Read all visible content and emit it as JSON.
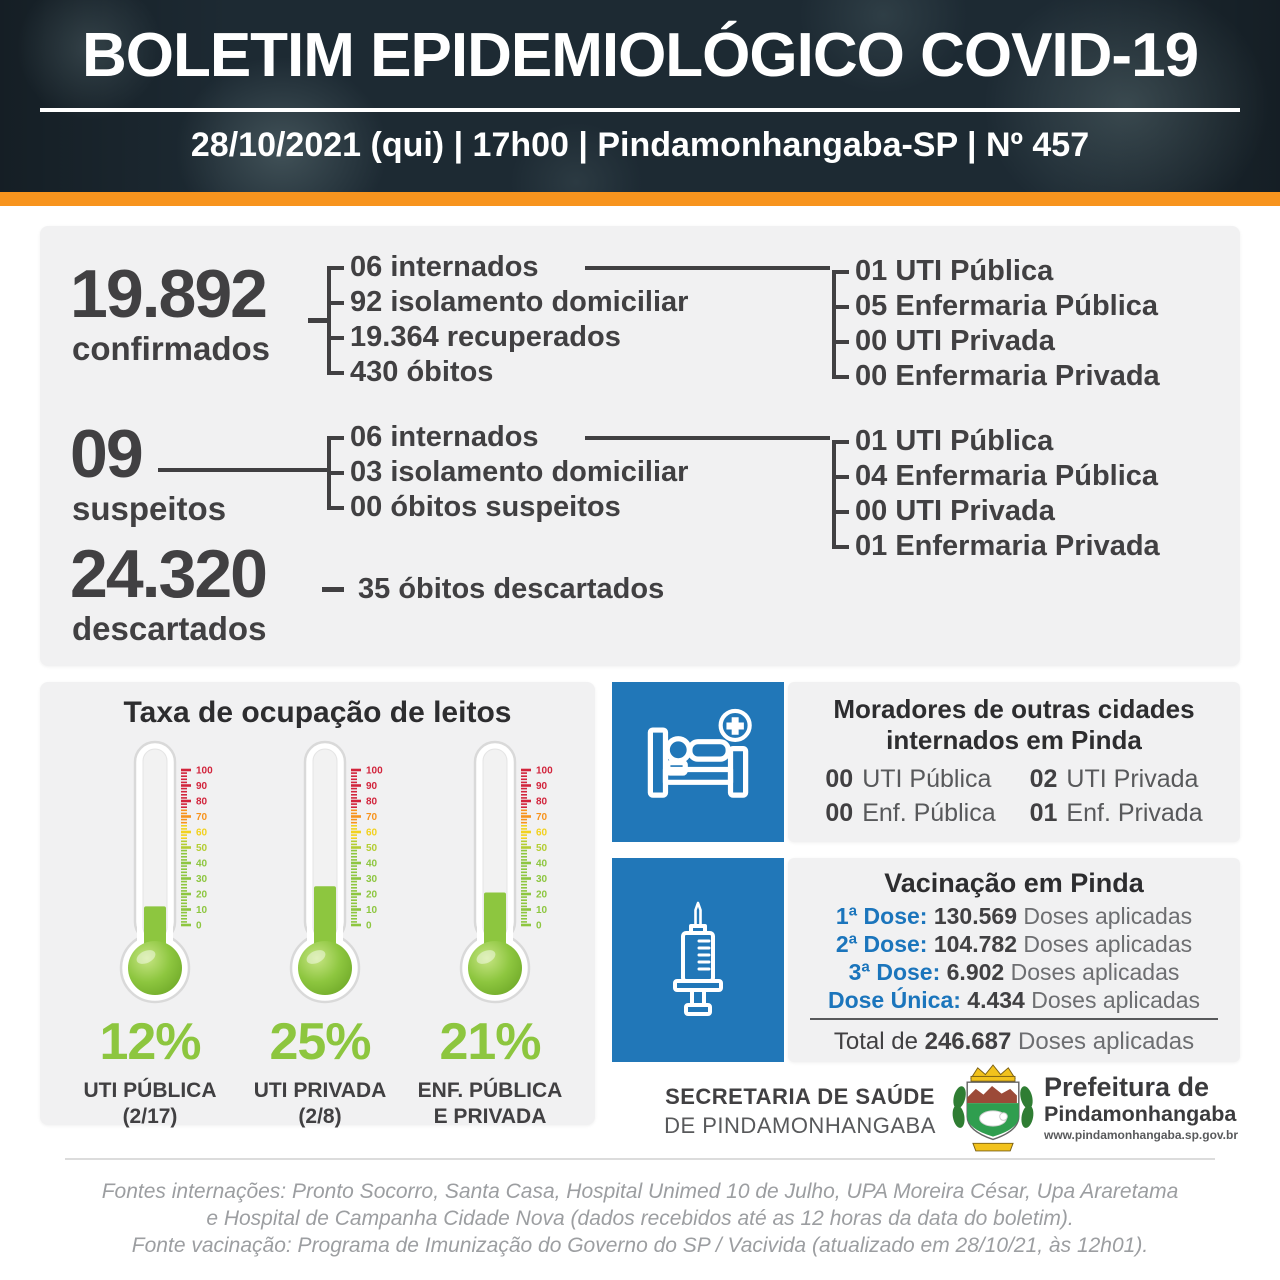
{
  "header": {
    "title": "BOLETIM EPIDEMIOLÓGICO COVID-19",
    "subtitle": "28/10/2021 (qui) | 17h00 | Pindamonhangaba-SP | Nº 457"
  },
  "cases": {
    "confirmed": {
      "value": "19.892",
      "label": "confirmados",
      "breakdown": [
        "06 internados",
        "92 isolamento domiciliar",
        "19.364 recuperados",
        "430 óbitos"
      ],
      "hospitalization": [
        "01 UTI Pública",
        "05 Enfermaria Pública",
        "00 UTI Privada",
        "00 Enfermaria Privada"
      ]
    },
    "suspected": {
      "value": "09",
      "label": "suspeitos",
      "breakdown": [
        "06 internados",
        "03 isolamento domiciliar",
        "00 óbitos suspeitos"
      ],
      "hospitalization": [
        "01 UTI Pública",
        "04 Enfermaria Pública",
        "00 UTI Privada",
        "01 Enfermaria Privada"
      ]
    },
    "discarded": {
      "value": "24.320",
      "label": "descartados",
      "note": "35 óbitos descartados"
    }
  },
  "occupancy": {
    "title": "Taxa de ocupação de leitos",
    "scale": {
      "min": 0,
      "max": 100,
      "step": 10
    },
    "gauges": [
      {
        "percent": 12,
        "percent_label": "12%",
        "label_line1": "UTI PÚBLICA",
        "label_line2": "(2/17)"
      },
      {
        "percent": 25,
        "percent_label": "25%",
        "label_line1": "UTI PRIVADA",
        "label_line2": "(2/8)"
      },
      {
        "percent": 21,
        "percent_label": "21%",
        "label_line1": "ENF. PÚBLICA",
        "label_line2": "E PRIVADA"
      }
    ]
  },
  "out_of_town": {
    "title_line1": "Moradores de outras cidades",
    "title_line2": "internados em Pinda",
    "items": [
      {
        "value": "00",
        "label": "UTI Pública"
      },
      {
        "value": "02",
        "label": "UTI Privada"
      },
      {
        "value": "00",
        "label": "Enf. Pública"
      },
      {
        "value": "01",
        "label": "Enf. Privada"
      }
    ]
  },
  "vaccination": {
    "title": "Vacinação em Pinda",
    "doses": [
      {
        "label": "1ª Dose:",
        "value": "130.569",
        "suffix": "Doses aplicadas"
      },
      {
        "label": "2ª Dose:",
        "value": "104.782",
        "suffix": "Doses aplicadas"
      },
      {
        "label": "3ª Dose:",
        "value": "6.902",
        "suffix": "Doses aplicadas"
      },
      {
        "label": "Dose Única:",
        "value": "4.434",
        "suffix": "Doses aplicadas"
      }
    ],
    "total": {
      "prefix": "Total de",
      "value": "246.687",
      "suffix": "Doses aplicadas"
    }
  },
  "footer": {
    "secretary_line1": "SECRETARIA DE SAÚDE",
    "secretary_line2": "DE PINDAMONHANGABA",
    "brand": {
      "line1": "Prefeitura de",
      "line2": "Pindamonhangaba",
      "url": "www.pindamonhangaba.sp.gov.br"
    },
    "sources": [
      "Fontes internações: Pronto Socorro, Santa Casa, Hospital Unimed 10 de Julho, UPA Moreira César, Upa Araretama",
      "e Hospital de Campanha Cidade Nova (dados recebidos até as 12 horas da data do boletim).",
      "Fonte vacinação: Programa de Imunização do Governo do SP / Vacivida (atualizado em 28/10/21, às 12h01)."
    ]
  },
  "colors": {
    "header_bg": "#1d2a33",
    "accent_orange": "#f7941e",
    "panel_gray": "#f1f1f2",
    "text_dark": "#414042",
    "text_gray": "#58595b",
    "green": "#8dc63f",
    "blue_panel": "#2177b8",
    "blue_text": "#1b75bc",
    "tick_red": "#d2243c",
    "tick_orange": "#f7941e",
    "tick_yellow": "#f2d11e",
    "source_gray": "#9c9ea1"
  },
  "chart_data": {
    "type": "gauge",
    "title": "Taxa de ocupação de leitos",
    "units": "%",
    "range": [
      0,
      100
    ],
    "items": [
      {
        "label": "UTI PÚBLICA (2/17)",
        "value": 12
      },
      {
        "label": "UTI PRIVADA (2/8)",
        "value": 25
      },
      {
        "label": "ENF. PÚBLICA E PRIVADA",
        "value": 21
      }
    ]
  }
}
